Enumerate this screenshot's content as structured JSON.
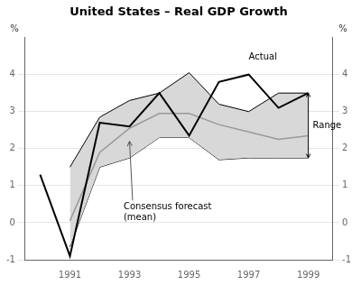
{
  "chart_data": {
    "type": "line",
    "title": "United States – Real GDP Growth",
    "ylabel": "%",
    "y2label": "%",
    "xlim": [
      1989.5,
      1999.8
    ],
    "xticks": [
      1991,
      1993,
      1995,
      1997,
      1999
    ],
    "ylim": [
      -1,
      5
    ],
    "yticks": [
      -1,
      0,
      1,
      2,
      3,
      4
    ],
    "y2lim": [
      -1,
      5
    ],
    "y2ticks": [
      -1,
      0,
      1,
      2,
      3,
      4
    ],
    "grid": "y",
    "series": [
      {
        "name": "Range",
        "type": "area",
        "color": "#d8d8d8",
        "edge_color": "#000000",
        "x": [
          1991,
          1992,
          1993,
          1994,
          1995,
          1996,
          1997,
          1998,
          1999
        ],
        "lower": [
          -0.65,
          1.5,
          1.75,
          2.3,
          2.3,
          1.7,
          1.75,
          1.75,
          1.75
        ],
        "upper": [
          1.5,
          2.85,
          3.3,
          3.5,
          4.05,
          3.2,
          3.0,
          3.5,
          3.5
        ]
      },
      {
        "name": "Consensus forecast\n(mean)",
        "color": "#999999",
        "x": [
          1991,
          1992,
          1993,
          1994,
          1995,
          1996,
          1997,
          1998,
          1999
        ],
        "values": [
          0.05,
          1.9,
          2.55,
          2.95,
          2.95,
          2.65,
          2.45,
          2.25,
          2.35
        ]
      },
      {
        "name": "Actual",
        "color": "#000000",
        "x": [
          1990,
          1991,
          1992,
          1993,
          1994,
          1995,
          1996,
          1997,
          1998,
          1999
        ],
        "values": [
          1.3,
          -0.9,
          2.7,
          2.6,
          3.5,
          2.35,
          3.8,
          4.0,
          3.1,
          3.5
        ]
      }
    ],
    "annotations": [
      {
        "text": "Actual",
        "x": 1997.0,
        "y": 4.35
      },
      {
        "text": "Consensus forecast\n(mean)",
        "x": 1992.8,
        "y": 0.55,
        "arrow_to": [
          1993.0,
          2.2
        ]
      },
      {
        "text": "Range",
        "x": 1999.15,
        "y": 2.62,
        "span": {
          "x": 1999.0,
          "from": 1.75,
          "to": 3.5
        }
      }
    ]
  }
}
